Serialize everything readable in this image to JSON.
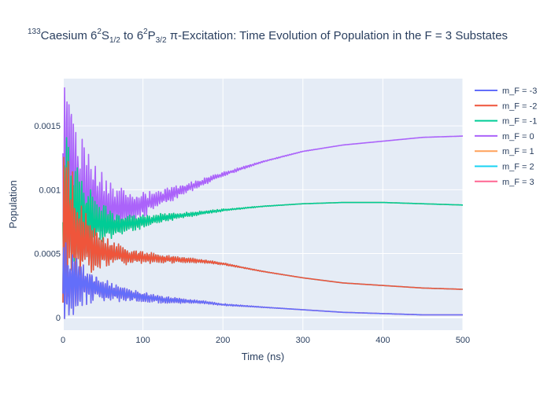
{
  "chart_data": {
    "type": "line",
    "title": {
      "iso_prefix": "133",
      "element": "Caesium ",
      "ground_n": "6",
      "ground_sup": "2",
      "ground_L": "S",
      "ground_sub": "1/2",
      "connector": " to ",
      "excited_n": "6",
      "excited_sup": "2",
      "excited_L": "P",
      "excited_sub": "3/2",
      "rest": " π-Excitation: Time Evolution of Population in the F = 3 Substates"
    },
    "xlabel": "Time (ns)",
    "ylabel": "Population",
    "xlim": [
      0,
      500
    ],
    "ylim": [
      -0.0001,
      0.00187
    ],
    "x_ticks": [
      0,
      100,
      200,
      300,
      400,
      500
    ],
    "y_ticks": [
      0,
      0.0005,
      0.001,
      0.0015
    ],
    "y_tick_labels": [
      "0",
      "0.0005",
      "0.001",
      "0.0015"
    ],
    "grid": true,
    "legend_position": "top-right",
    "series": [
      {
        "name": "m_F = -3",
        "color": "#636efa",
        "ref": 6
      },
      {
        "name": "m_F = -2",
        "color": "#ef553b",
        "ref": 5
      },
      {
        "name": "m_F = -1",
        "color": "#00cc96",
        "ref": 4
      },
      {
        "name": "m_F = 0",
        "color": "#ab63fa",
        "x": [
          0,
          20,
          40,
          60,
          80,
          100,
          125,
          150,
          175,
          200,
          250,
          300,
          350,
          400,
          450,
          500
        ],
        "y": [
          0.00125,
          0.00095,
          0.0009,
          0.00085,
          0.00085,
          0.00088,
          0.00094,
          0.001,
          0.00106,
          0.00112,
          0.00122,
          0.0013,
          0.00135,
          0.00138,
          0.00141,
          0.00142
        ],
        "osc_amp": [
          0.0005,
          0.00035,
          0.00022,
          0.00014,
          0.0001,
          7e-05,
          5e-05,
          3e-05,
          2e-05,
          1.2e-05,
          4e-06,
          1.5e-06,
          0,
          0,
          0,
          0
        ]
      },
      {
        "name": "m_F = 1",
        "color": "#ffa15a",
        "x": [
          0,
          20,
          40,
          60,
          80,
          100,
          125,
          150,
          175,
          200,
          250,
          300,
          350,
          400,
          450,
          500
        ],
        "y": [
          0.00095,
          0.00082,
          0.00075,
          0.00072,
          0.00073,
          0.00075,
          0.00078,
          0.0008,
          0.00082,
          0.00084,
          0.00087,
          0.00089,
          0.0009,
          0.0009,
          0.00089,
          0.00088
        ],
        "osc_amp": [
          0.0004,
          0.00024,
          0.00013,
          8e-05,
          5e-05,
          3.5e-05,
          2.5e-05,
          1.5e-05,
          1e-05,
          6e-06,
          2e-06,
          0,
          0,
          0,
          0,
          0
        ]
      },
      {
        "name": "m_F = 2",
        "color": "#19d3f3",
        "x": [
          0,
          20,
          40,
          60,
          80,
          100,
          125,
          150,
          175,
          200,
          250,
          300,
          350,
          400,
          450,
          500
        ],
        "y": [
          0.0008,
          0.0006,
          0.00053,
          0.0005,
          0.00048,
          0.00047,
          0.00046,
          0.00045,
          0.00044,
          0.00042,
          0.00036,
          0.00031,
          0.00027,
          0.00025,
          0.00023,
          0.00022
        ],
        "osc_amp": [
          0.0005,
          0.00023,
          0.00012,
          7e-05,
          5e-05,
          3.5e-05,
          2.5e-05,
          1.5e-05,
          1e-05,
          6e-06,
          2e-06,
          0,
          0,
          0,
          0,
          0
        ]
      },
      {
        "name": "m_F = 3",
        "color": "#ff6692",
        "x": [
          0,
          20,
          40,
          60,
          80,
          100,
          125,
          150,
          175,
          200,
          250,
          300,
          350,
          400,
          450,
          500
        ],
        "y": [
          0.00025,
          0.00028,
          0.00023,
          0.0002,
          0.00018,
          0.00016,
          0.00014,
          0.00013,
          0.00012,
          0.0001,
          8e-05,
          6e-05,
          4e-05,
          3e-05,
          2e-05,
          2e-05
        ],
        "osc_amp": [
          0.00025,
          0.00014,
          8e-05,
          5e-05,
          4e-05,
          3e-05,
          2e-05,
          1.3e-05,
          8e-06,
          5e-06,
          2e-06,
          0,
          0,
          0,
          0,
          0
        ]
      }
    ]
  }
}
